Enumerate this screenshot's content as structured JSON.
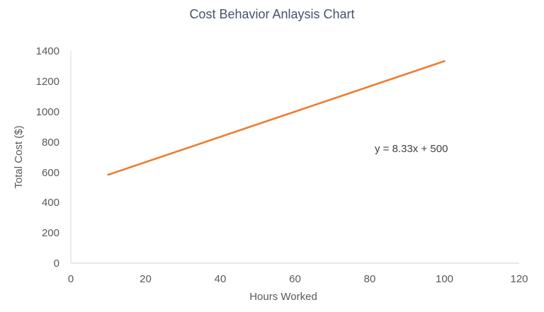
{
  "chart_data": {
    "type": "line",
    "title": "Cost Behavior Anlaysis Chart",
    "xlabel": "Hours Worked",
    "ylabel": "Total Cost ($)",
    "xlim": [
      0,
      120
    ],
    "ylim": [
      0,
      1400
    ],
    "x_ticks": [
      0,
      20,
      40,
      60,
      80,
      100,
      120
    ],
    "y_ticks": [
      0,
      200,
      400,
      600,
      800,
      1000,
      1200,
      1400
    ],
    "grid": false,
    "legend": null,
    "series": [
      {
        "name": "Total Cost",
        "color": "#ed7d31",
        "x": [
          10,
          100
        ],
        "values": [
          583.3,
          1333.0
        ]
      }
    ],
    "annotations": [
      {
        "text": "y = 8.33x + 500",
        "x": 83,
        "y": 760
      }
    ]
  }
}
